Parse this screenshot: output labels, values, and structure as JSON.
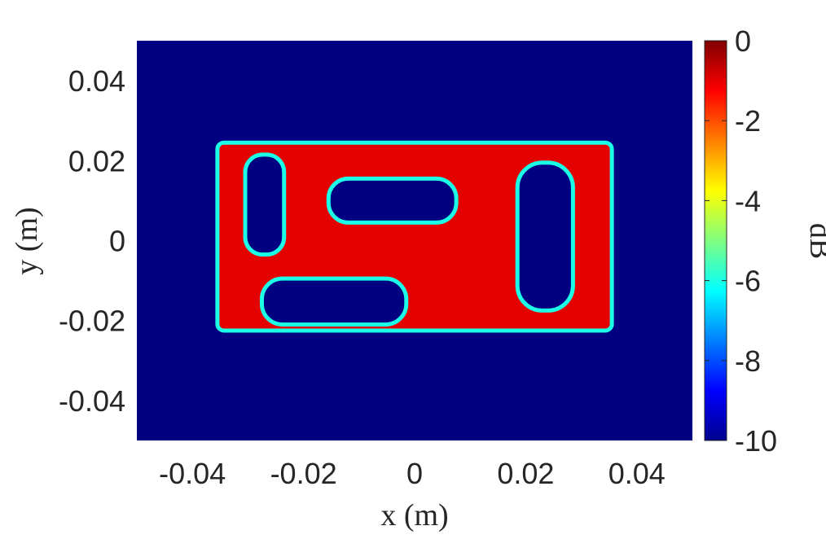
{
  "chart_data": {
    "type": "heatmap",
    "title": "",
    "xlabel": "x (m)",
    "ylabel": "y (m)",
    "xlim": [
      -0.05,
      0.05
    ],
    "ylim": [
      -0.05,
      0.05
    ],
    "x_ticks": [
      -0.04,
      -0.02,
      0,
      0.02,
      0.04
    ],
    "x_tick_labels": [
      "-0.04",
      "-0.02",
      "0",
      "0.02",
      "0.04"
    ],
    "y_ticks": [
      0.04,
      0.02,
      0,
      -0.02,
      -0.04
    ],
    "y_tick_labels": [
      "0.04",
      "0.02",
      "0",
      "-0.02",
      "-0.04"
    ],
    "colormap": "jet",
    "colorbar": {
      "label": "dB",
      "range": [
        -10,
        0
      ],
      "ticks": [
        0,
        -2,
        -4,
        -6,
        -8,
        -10
      ],
      "tick_labels": [
        "0",
        "-2",
        "-4",
        "-6",
        "-8",
        "-10"
      ]
    },
    "background_value_db": -10,
    "fill_value_db": -1,
    "edge_value_db": -6,
    "regions": [
      {
        "kind": "filled_rectangle",
        "x": [
          -0.0355,
          0.0355
        ],
        "y": [
          -0.0225,
          0.0245
        ],
        "value_db": -1
      },
      {
        "kind": "hole",
        "x": [
          -0.0305,
          -0.0235
        ],
        "y": [
          -0.0035,
          0.0215
        ],
        "value_db": -10
      },
      {
        "kind": "hole",
        "x": [
          -0.0155,
          0.0075
        ],
        "y": [
          0.0045,
          0.0155
        ],
        "value_db": -10
      },
      {
        "kind": "hole",
        "x": [
          -0.0275,
          -0.0015
        ],
        "y": [
          -0.021,
          -0.0095
        ],
        "value_db": -10
      },
      {
        "kind": "hole",
        "x": [
          0.0185,
          0.0285
        ],
        "y": [
          -0.0175,
          0.0195
        ],
        "value_db": -10
      }
    ],
    "grid": false,
    "legend": "colorbar-right"
  }
}
